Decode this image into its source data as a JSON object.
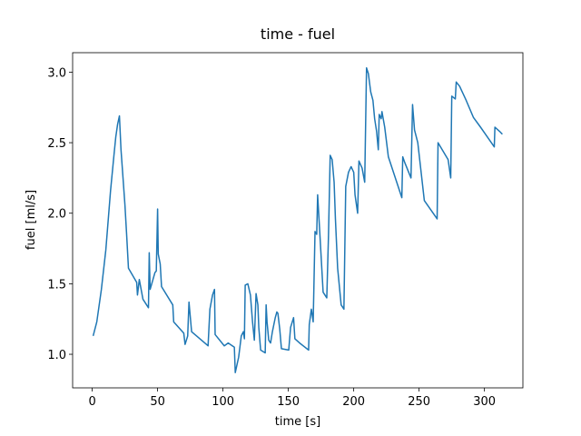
{
  "chart_data": {
    "type": "line",
    "title": "time - fuel",
    "xlabel": "time [s]",
    "ylabel": "fuel [ml/s]",
    "color": "#1f77b4",
    "grid": false,
    "x": [
      0.7,
      3.5,
      7,
      10.4,
      14,
      16.6,
      18,
      19.4,
      20.8,
      22,
      25,
      26.3,
      27.7,
      34,
      34.6,
      36,
      38.8,
      43,
      43.6,
      44.3,
      48,
      49,
      50,
      50.5,
      52,
      53,
      61.6,
      62.3,
      70,
      71,
      73,
      74,
      76,
      88.6,
      90,
      92,
      93.5,
      94,
      101,
      104,
      108.7,
      109.4,
      112,
      114,
      115.6,
      116.4,
      117,
      119,
      121,
      122.6,
      124,
      125.3,
      126.7,
      127.4,
      128.8,
      132.3,
      133,
      133.7,
      135,
      136.4,
      137.8,
      140,
      141.2,
      142,
      143.4,
      144.7,
      150.3,
      151.7,
      154,
      155,
      158.6,
      165.5,
      166,
      167.6,
      169,
      170.4,
      171.7,
      172.4,
      174,
      176.6,
      179.4,
      180.7,
      182,
      183.5,
      185,
      186,
      187.7,
      190.4,
      192.5,
      193.9,
      196,
      198,
      200,
      201,
      203,
      204,
      206.4,
      208.4,
      209.8,
      211.2,
      213,
      214.7,
      216,
      217.5,
      218.8,
      219.5,
      221,
      221.6,
      223.7,
      226.5,
      236.8,
      237.5,
      239,
      243.8,
      245,
      246.5,
      249,
      254,
      263.8,
      264.5,
      272.2,
      274.2,
      275,
      277.7,
      278.4,
      281,
      286,
      291.5,
      297,
      300,
      307.5,
      308,
      311.6,
      313.7
    ],
    "values": [
      1.13,
      1.23,
      1.46,
      1.74,
      2.16,
      2.41,
      2.54,
      2.63,
      2.69,
      2.45,
      2.06,
      1.85,
      1.61,
      1.51,
      1.42,
      1.53,
      1.39,
      1.33,
      1.72,
      1.46,
      1.58,
      1.59,
      2.03,
      1.71,
      1.64,
      1.48,
      1.35,
      1.23,
      1.15,
      1.07,
      1.13,
      1.37,
      1.16,
      1.06,
      1.32,
      1.42,
      1.46,
      1.14,
      1.06,
      1.08,
      1.05,
      0.87,
      0.98,
      1.13,
      1.16,
      1.11,
      1.49,
      1.5,
      1.42,
      1.23,
      1.1,
      1.43,
      1.35,
      1.19,
      1.03,
      1.01,
      1.35,
      1.23,
      1.1,
      1.08,
      1.16,
      1.26,
      1.3,
      1.29,
      1.18,
      1.04,
      1.03,
      1.19,
      1.26,
      1.11,
      1.08,
      1.03,
      1.21,
      1.32,
      1.23,
      1.87,
      1.85,
      2.13,
      1.87,
      1.44,
      1.4,
      1.84,
      2.41,
      2.38,
      2.22,
      1.96,
      1.61,
      1.35,
      1.32,
      2.19,
      2.29,
      2.33,
      2.29,
      2.13,
      2.0,
      2.37,
      2.32,
      2.22,
      3.03,
      2.99,
      2.86,
      2.8,
      2.67,
      2.58,
      2.45,
      2.7,
      2.67,
      2.72,
      2.61,
      2.4,
      2.11,
      2.4,
      2.36,
      2.25,
      2.77,
      2.59,
      2.5,
      2.09,
      1.96,
      2.5,
      2.38,
      2.25,
      2.83,
      2.81,
      2.93,
      2.9,
      2.8,
      2.68,
      2.61,
      2.57,
      2.47,
      2.61,
      2.58,
      2.56
    ],
    "xlim": [
      -15,
      329.4
    ],
    "ylim": [
      0.762,
      3.138
    ],
    "xticks": [
      0,
      50,
      100,
      150,
      200,
      250,
      300
    ],
    "yticks": [
      {
        "value": 1.0,
        "label": "1.0"
      },
      {
        "value": 1.5,
        "label": "1.5"
      },
      {
        "value": 2.0,
        "label": "2.0"
      },
      {
        "value": 2.5,
        "label": "2.5"
      },
      {
        "value": 3.0,
        "label": "3.0"
      }
    ]
  }
}
